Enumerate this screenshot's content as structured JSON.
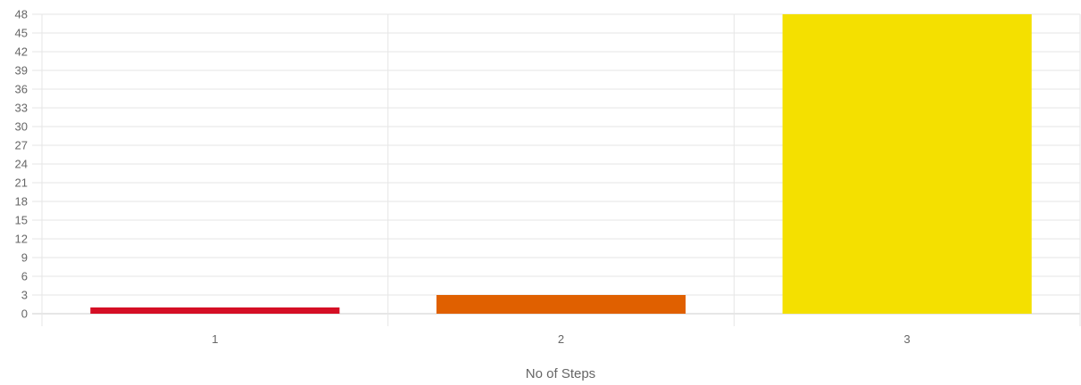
{
  "chart_data": {
    "type": "bar",
    "xlabel": "No of Steps",
    "ylabel": "",
    "title": "",
    "categories": [
      "1",
      "2",
      "3"
    ],
    "values": [
      1,
      3,
      48
    ],
    "colors": [
      "#d50f25",
      "#e06000",
      "#f4e000"
    ],
    "ylim": [
      0,
      48
    ],
    "yticks": [
      0,
      3,
      6,
      9,
      12,
      15,
      18,
      21,
      24,
      27,
      30,
      33,
      36,
      39,
      42,
      45,
      48
    ],
    "grid": true,
    "legend": "none"
  }
}
